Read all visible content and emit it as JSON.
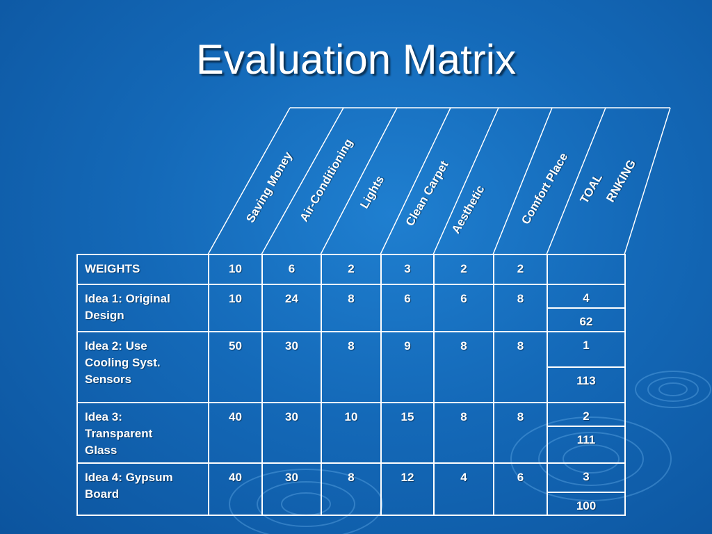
{
  "title": "Evaluation Matrix",
  "columns": [
    "Saving Money",
    "Air-Conditioning",
    "Lights",
    "Clean Carpet",
    "Aesthetic",
    "Comfort Place",
    "TOAL",
    "RNKING"
  ],
  "weights": {
    "label": "WEIGHTS",
    "values": [
      "10",
      "6",
      "2",
      "3",
      "2",
      "2"
    ]
  },
  "ideas": [
    {
      "label_lines": [
        "Idea 1: Original",
        "Design"
      ],
      "values": [
        "10",
        "24",
        "8",
        "6",
        "6",
        "8"
      ],
      "rank": "4",
      "total": "62"
    },
    {
      "label_lines": [
        "Idea 2: Use",
        "Cooling Syst.",
        "Sensors"
      ],
      "values": [
        "50",
        "30",
        "8",
        "9",
        "8",
        "8"
      ],
      "rank": "1",
      "total": "113"
    },
    {
      "label_lines": [
        "Idea 3:",
        "Transparent",
        "Glass"
      ],
      "values": [
        "40",
        "30",
        "10",
        "15",
        "8",
        "8"
      ],
      "rank": "2",
      "total": "111"
    },
    {
      "label_lines": [
        "Idea 4: Gypsum",
        "Board"
      ],
      "values": [
        "40",
        "30",
        "8",
        "12",
        "4",
        "6"
      ],
      "rank": "3",
      "total": "100"
    }
  ]
}
